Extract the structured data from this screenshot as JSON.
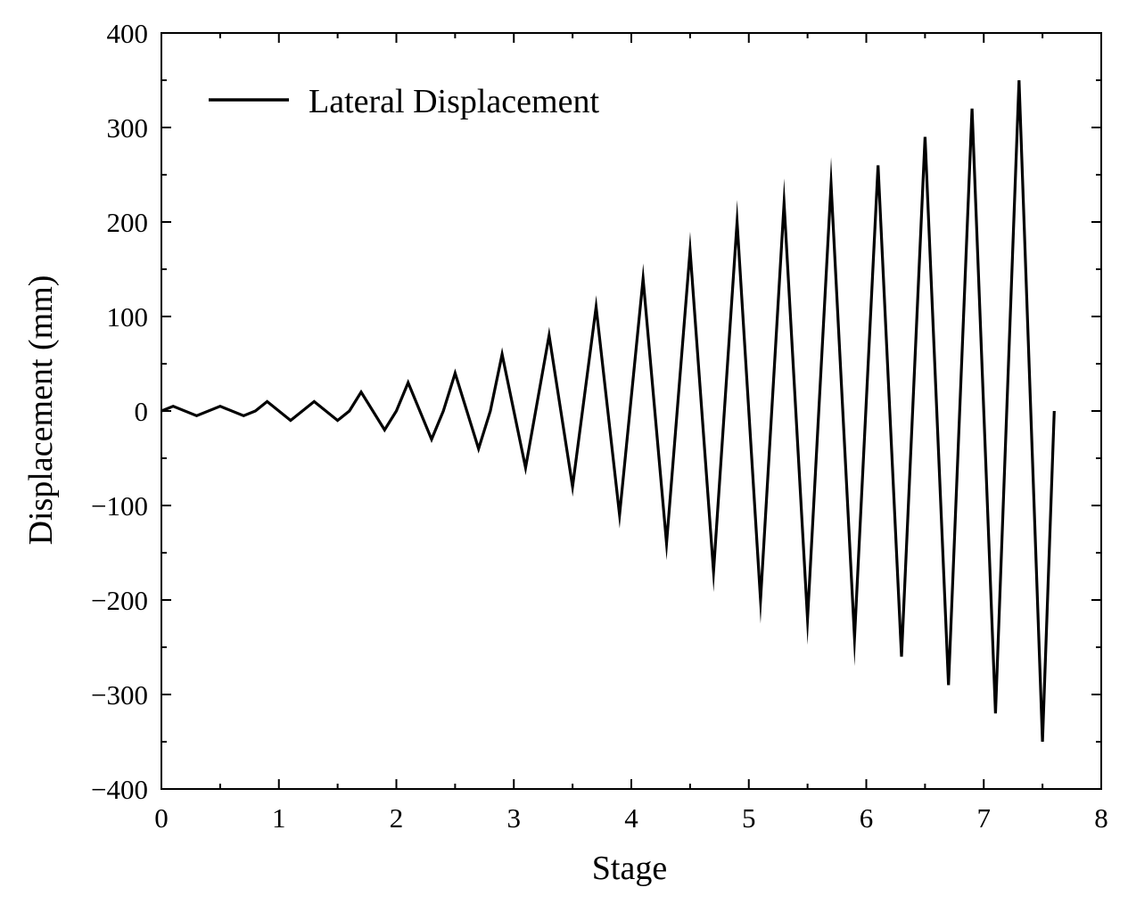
{
  "chart_data": {
    "type": "line",
    "xlabel": "Stage",
    "ylabel": "Displacement (mm)",
    "xlim": [
      0,
      8
    ],
    "ylim": [
      -400,
      400
    ],
    "xticks": [
      0,
      1,
      2,
      3,
      4,
      5,
      6,
      7,
      8
    ],
    "yticks": [
      -400,
      -300,
      -200,
      -100,
      0,
      100,
      200,
      300,
      400
    ],
    "xtick_labels": [
      "0",
      "1",
      "2",
      "3",
      "4",
      "5",
      "6",
      "7",
      "8"
    ],
    "ytick_labels": [
      "−400",
      "−300",
      "−200",
      "−100",
      "0",
      "100",
      "200",
      "300",
      "400"
    ],
    "grid": false,
    "legend_position": "top-left",
    "series": [
      {
        "name": "Lateral Displacement",
        "color": "#000000",
        "x": [
          0,
          0.1,
          0.3,
          0.5,
          0.7,
          0.8,
          0.9,
          1.1,
          1.3,
          1.5,
          1.6,
          1.7,
          1.9,
          2.0,
          2.1,
          2.3,
          2.4,
          2.5,
          2.7,
          2.8,
          2.9,
          3.1,
          3.3,
          3.5,
          3.7,
          3.9,
          4.1,
          4.3,
          4.5,
          4.7,
          4.9,
          5.1,
          5.3,
          5.5,
          5.7,
          5.9,
          6.1,
          6.3,
          6.5,
          6.7,
          6.9,
          7.1,
          7.3,
          7.5,
          7.6
        ],
        "y": [
          0,
          5,
          -5,
          5,
          -5,
          0,
          10,
          -10,
          10,
          -10,
          0,
          20,
          -20,
          0,
          30,
          -30,
          0,
          40,
          -40,
          0,
          60,
          -60,
          80,
          -80,
          110,
          -110,
          140,
          -140,
          170,
          -170,
          200,
          -200,
          220,
          -220,
          240,
          -240,
          260,
          -260,
          290,
          -290,
          320,
          -320,
          350,
          -350,
          0
        ]
      }
    ]
  }
}
